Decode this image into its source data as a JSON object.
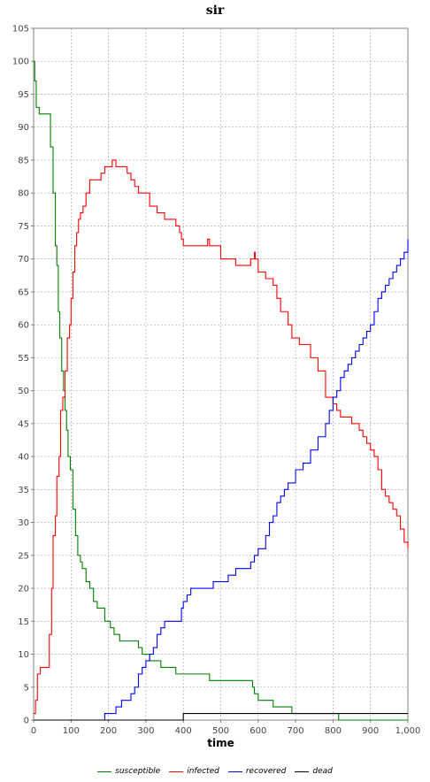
{
  "window": {
    "title": "sir"
  },
  "chart_data": {
    "type": "line",
    "title": "sir",
    "xlabel": "time",
    "ylabel": "",
    "xlim": [
      0,
      1000
    ],
    "ylim": [
      0,
      105
    ],
    "x_ticks": [
      0,
      100,
      200,
      300,
      400,
      500,
      600,
      700,
      800,
      900,
      1000
    ],
    "x_tick_labels": [
      "0",
      "100",
      "200",
      "300",
      "400",
      "500",
      "600",
      "700",
      "800",
      "900",
      "1,000"
    ],
    "y_ticks": [
      0,
      5,
      10,
      15,
      20,
      25,
      30,
      35,
      40,
      45,
      50,
      55,
      60,
      65,
      70,
      75,
      80,
      85,
      90,
      95,
      100,
      105
    ],
    "y_tick_labels": [
      "0",
      "5",
      "10",
      "15",
      "20",
      "25",
      "30",
      "35",
      "40",
      "45",
      "50",
      "55",
      "60",
      "65",
      "70",
      "75",
      "80",
      "85",
      "90",
      "95",
      "100",
      "105"
    ],
    "grid": true,
    "legend_position": "bottom",
    "series": [
      {
        "name": "susceptible",
        "color": "#008000",
        "x": [
          0,
          3,
          7,
          15,
          25,
          35,
          45,
          52,
          58,
          62,
          66,
          70,
          75,
          80,
          84,
          88,
          92,
          98,
          105,
          112,
          118,
          125,
          130,
          140,
          150,
          160,
          170,
          180,
          190,
          205,
          215,
          230,
          240,
          260,
          280,
          290,
          300,
          310,
          320,
          340,
          360,
          380,
          395,
          420,
          450,
          470,
          500,
          530,
          560,
          580,
          585,
          590,
          600,
          620,
          640,
          660,
          680,
          690,
          700,
          720,
          740,
          760,
          780,
          800,
          815,
          820,
          840,
          860,
          880,
          900,
          920,
          940,
          960,
          980,
          1000
        ],
        "y": [
          100,
          97,
          93,
          92,
          92,
          92,
          87,
          80,
          72,
          69,
          62,
          58,
          53,
          50,
          47,
          44,
          40,
          38,
          32,
          28,
          25,
          24,
          23,
          21,
          20,
          18,
          17,
          17,
          15,
          14,
          13,
          12,
          12,
          12,
          11,
          10,
          10,
          9,
          9,
          8,
          8,
          7,
          7,
          7,
          7,
          6,
          6,
          6,
          6,
          6,
          5,
          4,
          3,
          3,
          2,
          2,
          2,
          1,
          1,
          1,
          1,
          1,
          1,
          1,
          0,
          0,
          0,
          0,
          0,
          0,
          0,
          0,
          0,
          0,
          0
        ]
      },
      {
        "name": "infected",
        "color": "#ff0000",
        "x": [
          0,
          5,
          10,
          18,
          25,
          35,
          42,
          48,
          52,
          58,
          62,
          68,
          72,
          78,
          84,
          90,
          96,
          100,
          105,
          110,
          115,
          120,
          125,
          132,
          140,
          150,
          160,
          170,
          180,
          190,
          200,
          210,
          220,
          225,
          230,
          240,
          250,
          260,
          270,
          280,
          290,
          300,
          310,
          320,
          330,
          340,
          350,
          360,
          380,
          390,
          395,
          400,
          410,
          420,
          440,
          460,
          465,
          470,
          480,
          500,
          520,
          540,
          560,
          580,
          590,
          592,
          600,
          620,
          640,
          650,
          660,
          680,
          690,
          700,
          710,
          730,
          740,
          760,
          780,
          790,
          800,
          810,
          820,
          830,
          850,
          870,
          880,
          890,
          900,
          910,
          920,
          930,
          940,
          950,
          960,
          970,
          980,
          990,
          1000
        ],
        "y": [
          1,
          3,
          7,
          8,
          8,
          8,
          13,
          20,
          28,
          31,
          37,
          40,
          47,
          49,
          53,
          58,
          60,
          64,
          68,
          72,
          74,
          76,
          77,
          78,
          80,
          82,
          82,
          82,
          83,
          84,
          84,
          85,
          84,
          84,
          84,
          84,
          83,
          82,
          81,
          80,
          80,
          80,
          78,
          78,
          77,
          77,
          76,
          76,
          75,
          74,
          73,
          72,
          72,
          72,
          72,
          72,
          73,
          72,
          72,
          70,
          70,
          69,
          69,
          70,
          71,
          70,
          68,
          67,
          66,
          64,
          62,
          60,
          58,
          58,
          57,
          57,
          55,
          53,
          49,
          49,
          48,
          47,
          46,
          46,
          45,
          44,
          43,
          42,
          41,
          40,
          38,
          35,
          34,
          33,
          32,
          31,
          29,
          27,
          26
        ]
      },
      {
        "name": "recovered",
        "color": "#0000ff",
        "x": [
          0,
          50,
          100,
          150,
          180,
          190,
          200,
          210,
          220,
          235,
          250,
          260,
          270,
          280,
          290,
          300,
          310,
          320,
          330,
          340,
          350,
          360,
          380,
          395,
          400,
          410,
          420,
          440,
          460,
          480,
          500,
          520,
          540,
          560,
          580,
          590,
          600,
          620,
          630,
          640,
          650,
          660,
          670,
          680,
          700,
          720,
          740,
          760,
          780,
          790,
          800,
          810,
          820,
          830,
          840,
          850,
          860,
          870,
          880,
          890,
          900,
          910,
          920,
          930,
          940,
          950,
          960,
          970,
          980,
          990,
          1000
        ],
        "y": [
          0,
          0,
          0,
          0,
          0,
          1,
          1,
          1,
          2,
          3,
          3,
          4,
          5,
          7,
          8,
          9,
          10,
          11,
          13,
          14,
          15,
          15,
          15,
          17,
          18,
          19,
          20,
          20,
          20,
          21,
          21,
          22,
          23,
          23,
          24,
          25,
          26,
          28,
          30,
          31,
          33,
          34,
          35,
          36,
          38,
          39,
          41,
          43,
          45,
          47,
          49,
          50,
          52,
          53,
          54,
          55,
          56,
          57,
          58,
          59,
          60,
          62,
          64,
          65,
          66,
          67,
          68,
          69,
          70,
          71,
          73
        ]
      },
      {
        "name": "dead",
        "color": "#000000",
        "x": [
          0,
          100,
          200,
          300,
          395,
          400,
          500,
          600,
          700,
          800,
          900,
          1000
        ],
        "y": [
          0,
          0,
          0,
          0,
          0,
          1,
          1,
          1,
          1,
          1,
          1,
          1
        ]
      }
    ]
  }
}
